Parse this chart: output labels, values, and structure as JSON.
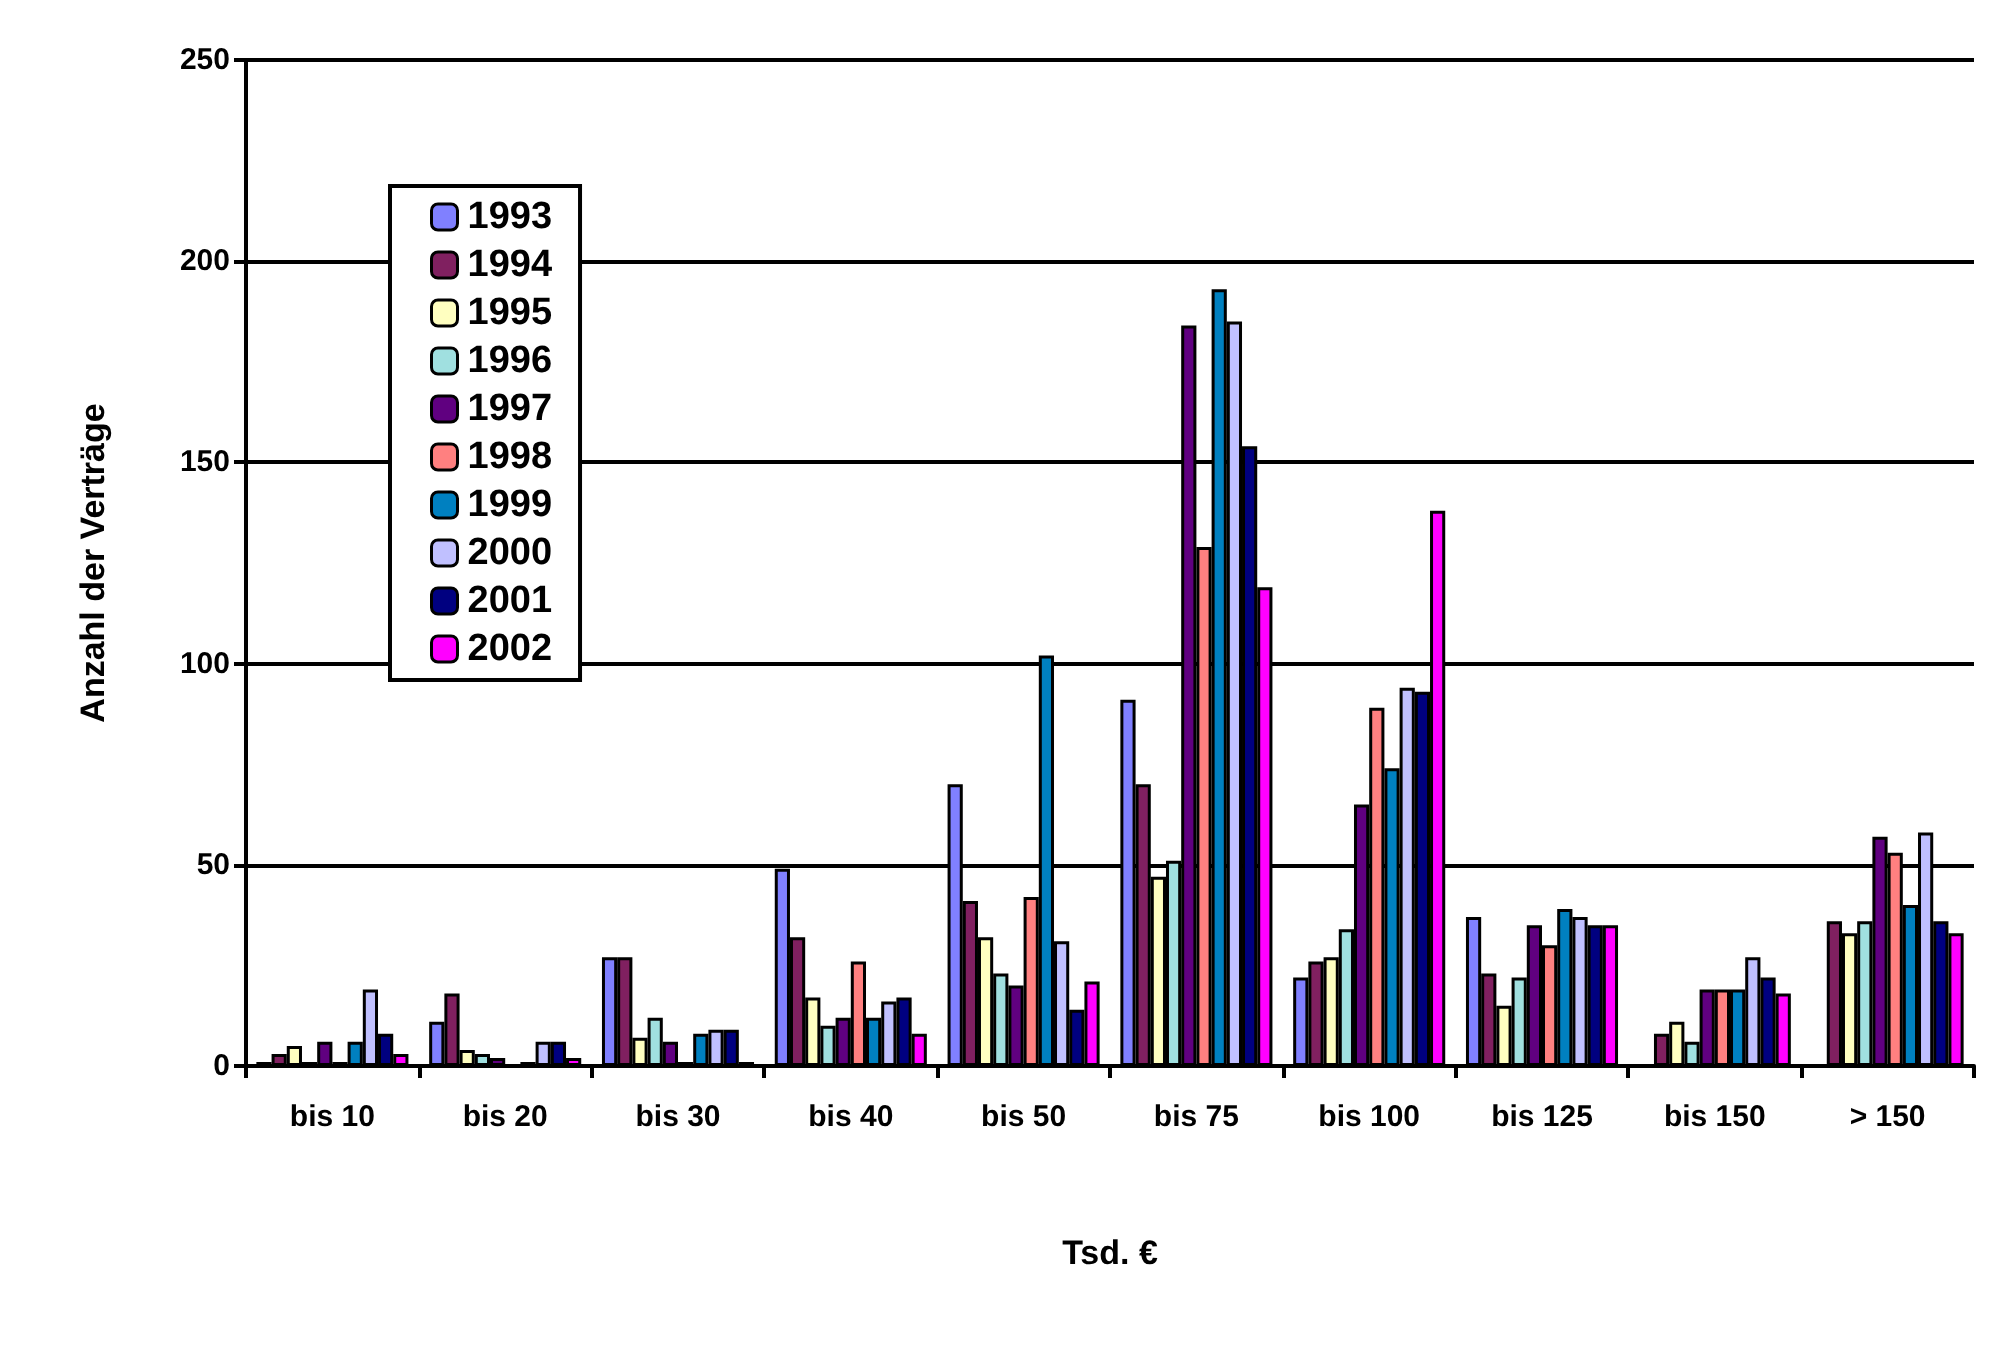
{
  "chart_data": {
    "type": "bar",
    "xlabel": "Tsd. €",
    "ylabel": "Anzahl der Verträge",
    "categories": [
      "bis 10",
      "bis 20",
      "bis 30",
      "bis 40",
      "bis 50",
      "bis 75",
      "bis 100",
      "bis 125",
      "bis 150",
      "> 150"
    ],
    "series": [
      {
        "name": "1993",
        "color": "#8080ff",
        "values": [
          1,
          11,
          27,
          49,
          70,
          91,
          22,
          37,
          0,
          0
        ]
      },
      {
        "name": "1994",
        "color": "#802060",
        "values": [
          3,
          18,
          27,
          32,
          41,
          70,
          26,
          23,
          8,
          36
        ]
      },
      {
        "name": "1995",
        "color": "#ffffc0",
        "values": [
          5,
          4,
          7,
          17,
          32,
          47,
          27,
          15,
          11,
          33
        ]
      },
      {
        "name": "1996",
        "color": "#a0e0e0",
        "values": [
          1,
          3,
          12,
          10,
          23,
          51,
          34,
          22,
          6,
          36
        ]
      },
      {
        "name": "1997",
        "color": "#600080",
        "values": [
          6,
          2,
          6,
          12,
          20,
          184,
          65,
          35,
          19,
          57
        ]
      },
      {
        "name": "1998",
        "color": "#ff8080",
        "values": [
          1,
          0,
          1,
          26,
          42,
          129,
          89,
          30,
          19,
          53
        ]
      },
      {
        "name": "1999",
        "color": "#0080c0",
        "values": [
          6,
          1,
          8,
          12,
          102,
          193,
          74,
          39,
          19,
          40
        ]
      },
      {
        "name": "2000",
        "color": "#c0c0ff",
        "values": [
          19,
          6,
          9,
          16,
          31,
          185,
          94,
          37,
          27,
          58
        ]
      },
      {
        "name": "2001",
        "color": "#000080",
        "values": [
          8,
          6,
          9,
          17,
          14,
          154,
          93,
          35,
          22,
          36
        ]
      },
      {
        "name": "2002",
        "color": "#ff00ff",
        "values": [
          3,
          2,
          1,
          8,
          21,
          119,
          138,
          35,
          18,
          33
        ]
      }
    ],
    "ylim": [
      0,
      250
    ],
    "yticks": [
      0,
      50,
      100,
      150,
      200,
      250
    ],
    "grid": "y",
    "legend": "top left"
  }
}
